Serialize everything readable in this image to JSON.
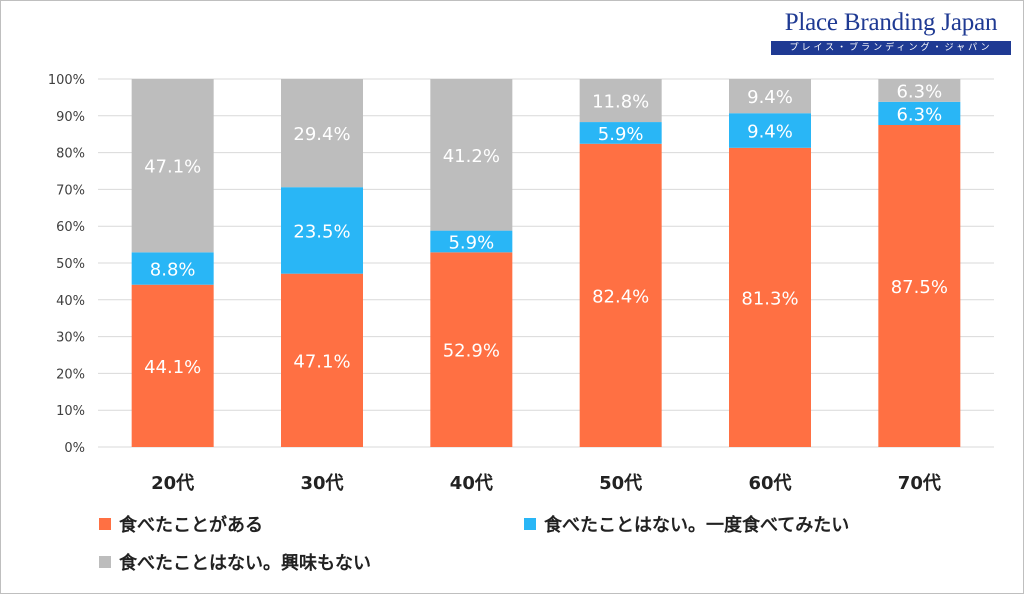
{
  "logo": {
    "title": "Place Branding Japan",
    "subtitle": "プレイス・ブランディング・ジャパン"
  },
  "colors": {
    "series": [
      "#ff7043",
      "#29b6f6",
      "#bdbdbd"
    ],
    "grid": "#d9d9d9",
    "axis_text": "#404040"
  },
  "chart_data": {
    "type": "bar",
    "stacked": true,
    "categories": [
      "20代",
      "30代",
      "40代",
      "50代",
      "60代",
      "70代"
    ],
    "series": [
      {
        "name": "食べたことがある",
        "values": [
          44.1,
          47.1,
          52.9,
          82.4,
          81.3,
          87.5
        ]
      },
      {
        "name": "食べたことはない。一度食べてみたい",
        "values": [
          8.8,
          23.5,
          5.9,
          5.9,
          9.4,
          6.3
        ]
      },
      {
        "name": "食べたことはない。興味もない",
        "values": [
          47.1,
          29.4,
          41.2,
          11.8,
          9.4,
          6.3
        ]
      }
    ],
    "yticks": [
      "0%",
      "10%",
      "20%",
      "30%",
      "40%",
      "50%",
      "60%",
      "70%",
      "80%",
      "90%",
      "100%"
    ],
    "ylim": [
      0,
      100
    ],
    "grid": true,
    "legend_position": "bottom"
  }
}
